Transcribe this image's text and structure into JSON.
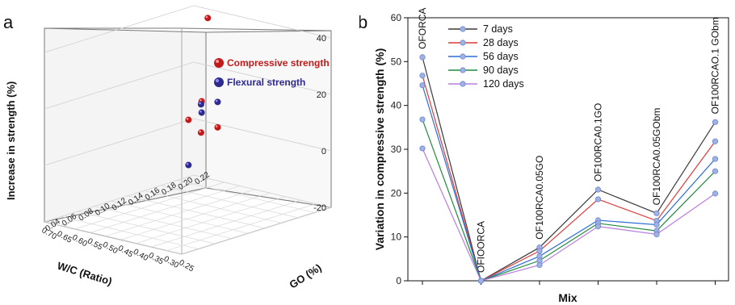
{
  "panel_a": {
    "letter": "a",
    "chart_data": {
      "type": "scatter",
      "title": "",
      "zlabel": "Increase in strength (%)",
      "xlabel": "W/C (Ratio)",
      "ylabel": "GO (%)",
      "z_ticks": [
        "-20",
        "0",
        "20",
        "40",
        "60"
      ],
      "zlim": [
        -20,
        60
      ],
      "x_ticks": [
        "0.25",
        "0.30",
        "0.35",
        "0.40",
        "0.45",
        "0.50",
        "0.55",
        "0.60",
        "0.65",
        "0.70"
      ],
      "xlim": [
        0.25,
        0.7
      ],
      "y_ticks": [
        "0.04",
        "0.06",
        "0.08",
        "0.10",
        "0.12",
        "0.14",
        "0.16",
        "0.18",
        "0.20",
        "0.22"
      ],
      "ylim": [
        0.04,
        0.22
      ],
      "legend_position": "top-right",
      "series": [
        {
          "name": "Compressive strength",
          "color": "#c21a1a",
          "points": [
            {
              "x": 0.35,
              "y": 0.1,
              "z": 15
            },
            {
              "x": 0.35,
              "y": 0.12,
              "z": 15
            },
            {
              "x": 0.5,
              "y": 0.14,
              "z": 12
            },
            {
              "x": 0.6,
              "y": 0.2,
              "z": 40
            },
            {
              "x": 0.62,
              "y": 0.2,
              "z": 10
            }
          ]
        },
        {
          "name": "Flexural strength",
          "color": "#2e2a8c",
          "points": [
            {
              "x": 0.35,
              "y": 0.1,
              "z": 25
            },
            {
              "x": 0.35,
              "y": 0.12,
              "z": 24
            },
            {
              "x": 0.5,
              "y": 0.14,
              "z": -4
            },
            {
              "x": 0.6,
              "y": 0.2,
              "z": 57
            },
            {
              "x": 0.62,
              "y": 0.2,
              "z": 6
            }
          ]
        }
      ]
    }
  },
  "panel_b": {
    "letter": "b",
    "chart_data": {
      "type": "line",
      "title": "",
      "xlabel": "Mix",
      "ylabel": "Variation in compressive strength (%)",
      "ylim": [
        0,
        60
      ],
      "y_ticks": [
        "0",
        "10",
        "20",
        "30",
        "40",
        "50",
        "60"
      ],
      "categories": [
        "OFORCA",
        "OFIOORCA",
        "OF100RCA0.05GO",
        "OF100RCA0.1GO",
        "OF100RCA0.05GObm",
        "OF100RCAO.1 GObm"
      ],
      "legend_position": "top-left",
      "series": [
        {
          "name": "7 days",
          "color": "#3a3a3a",
          "values": [
            51.0,
            0,
            7.6,
            20.8,
            15.4,
            36.2
          ]
        },
        {
          "name": "28 days",
          "color": "#e03a3a",
          "values": [
            46.8,
            0,
            6.8,
            18.6,
            13.7,
            31.8
          ]
        },
        {
          "name": "56 days",
          "color": "#2b6fd6",
          "values": [
            44.6,
            0,
            5.6,
            13.8,
            12.8,
            27.8
          ]
        },
        {
          "name": "90 days",
          "color": "#1f8a3e",
          "values": [
            36.8,
            0,
            4.6,
            13.1,
            11.4,
            25.0
          ]
        },
        {
          "name": "120 days",
          "color": "#b77de0",
          "values": [
            30.2,
            0,
            3.6,
            12.4,
            10.6,
            19.9
          ]
        }
      ]
    }
  }
}
